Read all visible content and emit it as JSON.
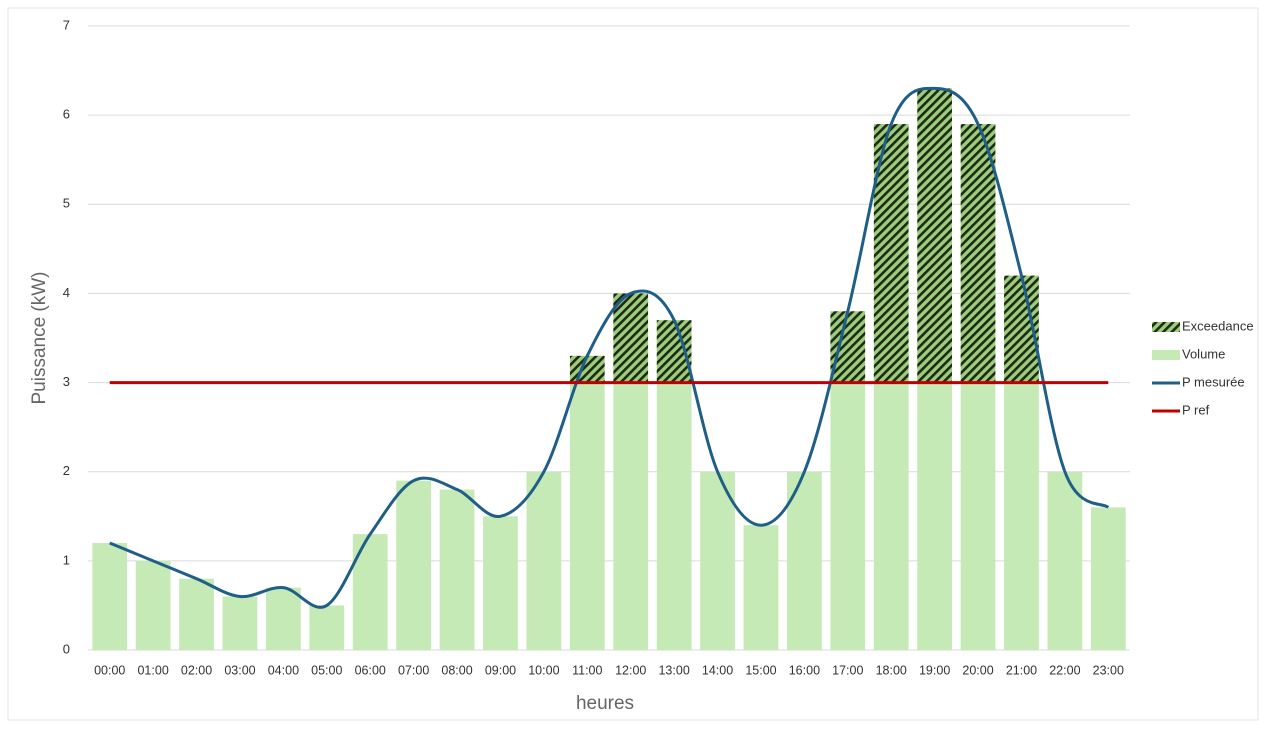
{
  "chart_data": {
    "type": "bar",
    "x_label": "heures",
    "y_label": "Puissance (kW)",
    "categories": [
      "00:00",
      "01:00",
      "02:00",
      "03:00",
      "04:00",
      "05:00",
      "06:00",
      "07:00",
      "08:00",
      "09:00",
      "10:00",
      "11:00",
      "12:00",
      "13:00",
      "14:00",
      "15:00",
      "16:00",
      "17:00",
      "18:00",
      "19:00",
      "20:00",
      "21:00",
      "22:00",
      "23:00"
    ],
    "series": [
      {
        "name": "Exceedance",
        "kind": "bar",
        "stack": true,
        "hatch": true,
        "color": "#9ccc7c",
        "values": [
          0,
          0,
          0,
          0,
          0,
          0,
          0,
          0,
          0,
          0,
          0,
          0.3,
          1.0,
          0.7,
          0,
          0,
          0,
          0.8,
          2.9,
          3.3,
          2.9,
          1.2,
          0,
          0
        ]
      },
      {
        "name": "Volume",
        "kind": "bar",
        "stack": true,
        "color": "#c5eab5",
        "values": [
          1.2,
          1.0,
          0.8,
          0.6,
          0.7,
          0.5,
          1.3,
          1.9,
          1.8,
          1.5,
          2.0,
          3,
          3,
          3,
          2.0,
          1.4,
          2.0,
          3,
          3,
          3,
          3,
          3,
          2.0,
          1.6
        ]
      },
      {
        "name": "P mesurée",
        "kind": "line",
        "smooth": true,
        "color": "#1f5f87",
        "values": [
          1.2,
          1.0,
          0.8,
          0.6,
          0.7,
          0.5,
          1.3,
          1.9,
          1.8,
          1.5,
          2.0,
          3.3,
          4.0,
          3.7,
          2.0,
          1.4,
          2.0,
          3.8,
          5.9,
          6.3,
          5.9,
          4.2,
          2.0,
          1.6
        ]
      },
      {
        "name": "P ref",
        "kind": "line",
        "color": "#c00000",
        "values": [
          3,
          3,
          3,
          3,
          3,
          3,
          3,
          3,
          3,
          3,
          3,
          3,
          3,
          3,
          3,
          3,
          3,
          3,
          3,
          3,
          3,
          3,
          3,
          3
        ]
      }
    ],
    "ylim": [
      0,
      7
    ],
    "yticks": [
      0,
      1,
      2,
      3,
      4,
      5,
      6,
      7
    ],
    "grid": true,
    "legend": "right"
  }
}
